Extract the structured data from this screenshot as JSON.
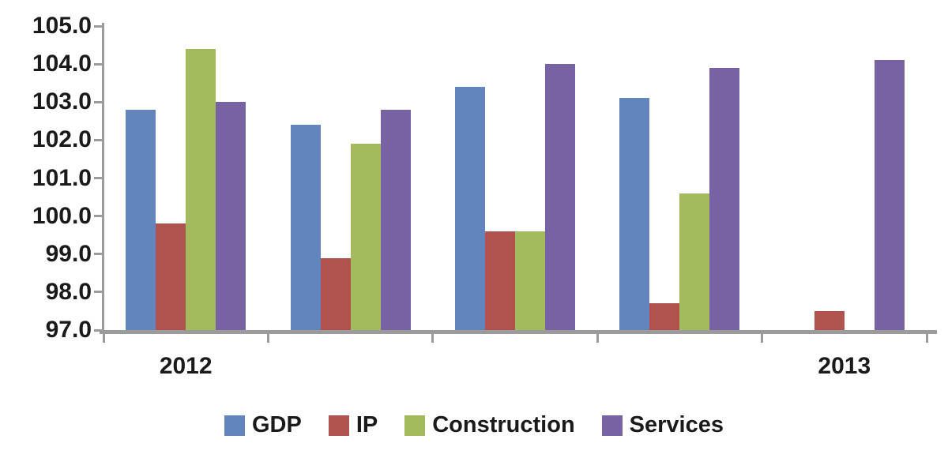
{
  "chart_data": {
    "type": "bar",
    "title": "",
    "categories": [
      "2012",
      "",
      "",
      "",
      "2013"
    ],
    "series": [
      {
        "name": "GDP",
        "color": "#6285BE",
        "values": [
          102.8,
          102.4,
          103.4,
          103.1,
          null
        ]
      },
      {
        "name": "IP",
        "color": "#B0534E",
        "values": [
          99.8,
          98.9,
          99.6,
          97.7,
          97.5
        ]
      },
      {
        "name": "Construction",
        "color": "#A3BA5F",
        "values": [
          104.4,
          101.9,
          99.6,
          100.6,
          null
        ]
      },
      {
        "name": "Services",
        "color": "#7763A3",
        "values": [
          103.0,
          102.8,
          104.0,
          103.9,
          104.1
        ]
      }
    ],
    "ylim": [
      97.0,
      105.0
    ],
    "y_tick_step": 1.0,
    "y_tick_labels": [
      "105.0",
      "104.0",
      "103.0",
      "102.0",
      "101.0",
      "100.0",
      "99.0",
      "98.0",
      "97.0"
    ],
    "grid": false,
    "legend_position": "bottom",
    "axis_color": "#9B9B9B",
    "text_color": "#1A1A1A"
  }
}
